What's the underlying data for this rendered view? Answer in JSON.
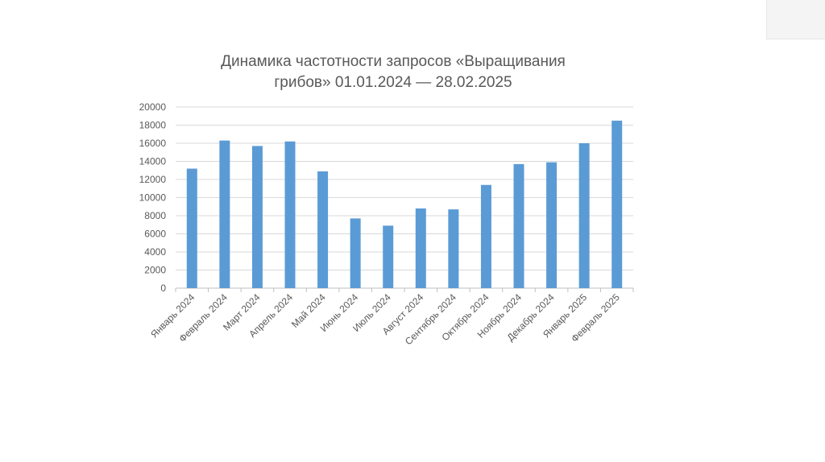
{
  "chart_data": {
    "type": "bar",
    "title_line1": "Динамика частотности запросов «Выращивания",
    "title_line2": "грибов»  01.01.2024 — 28.02.2025",
    "categories": [
      "Январь 2024",
      "Февраль 2024",
      "Март 2024",
      "Апрель 2024",
      "Май 2024",
      "Июнь 2024",
      "Июль 2024",
      "Август 2024",
      "Сентябрь 2024",
      "Октябрь 2024",
      "Ноябрь 2024",
      "Декабрь 2024",
      "Январь 2025",
      "Февраль 2025"
    ],
    "values": [
      13200,
      16300,
      15700,
      16200,
      12900,
      7700,
      6900,
      8800,
      8700,
      11400,
      13700,
      13900,
      16000,
      18500
    ],
    "y_ticks": [
      "0",
      "2000",
      "4000",
      "6000",
      "8000",
      "10000",
      "12000",
      "14000",
      "16000",
      "18000",
      "20000"
    ],
    "ylim": [
      0,
      20000
    ],
    "grid": true,
    "legend": "none",
    "bar_color": "#5b9bd5"
  }
}
